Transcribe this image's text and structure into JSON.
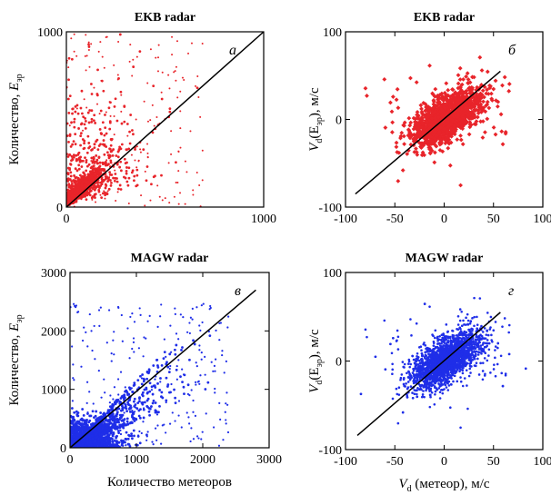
{
  "chart_data": [
    {
      "type": "scatter",
      "title": "EKB radar",
      "panel_label": "а",
      "xlabel": "",
      "ylabel": "Количество, E_эр",
      "ylabel_main": "Количество, ",
      "ylabel_var": "E",
      "ylabel_sub": "эр",
      "xlim": [
        0,
        1000
      ],
      "ylim": [
        0,
        1000
      ],
      "x_ticks": [
        "0",
        "1000"
      ],
      "y_ticks": [
        "0",
        "1000"
      ],
      "point_color": "#e8242a",
      "dense_center": [
        150,
        150
      ],
      "n_points": 1500,
      "fit_line": {
        "x": [
          0,
          1000
        ],
        "y": [
          0,
          1000
        ]
      }
    },
    {
      "type": "scatter",
      "title": "EKB radar",
      "panel_label": "б",
      "xlabel": "",
      "ylabel": "V_d(E_эр), м/с",
      "ylabel_main": "V",
      "ylabel_sub": "d",
      "ylabel_paren": "(E",
      "ylabel_paren_sub": "эр",
      "ylabel_tail": "), м/с",
      "xlim": [
        -100,
        100
      ],
      "ylim": [
        -100,
        100
      ],
      "x_ticks": [
        "-100",
        "-50",
        "0",
        "50",
        "100"
      ],
      "y_ticks": [
        "-100",
        "0",
        "100"
      ],
      "point_color": "#e8242a",
      "n_points": 1400,
      "fit_line": {
        "x": [
          -90,
          57
        ],
        "y": [
          -85,
          55
        ]
      }
    },
    {
      "type": "scatter",
      "title": "MAGW radar",
      "panel_label": "в",
      "xlabel": "Количество метеоров",
      "ylabel": "Количество, E_эр",
      "ylabel_main": "Количество, ",
      "ylabel_var": "E",
      "ylabel_sub": "эр",
      "xlim": [
        0,
        3000
      ],
      "ylim": [
        0,
        3000
      ],
      "x_ticks": [
        "0",
        "1000",
        "2000",
        "3000"
      ],
      "y_ticks": [
        "0",
        "1000",
        "2000",
        "3000"
      ],
      "point_color": "#1f2ee8",
      "n_points": 2200,
      "fit_line": {
        "x": [
          0,
          2800
        ],
        "y": [
          0,
          2700
        ]
      }
    },
    {
      "type": "scatter",
      "title": "MAGW radar",
      "panel_label": "г",
      "xlabel": "V_d (метеор), м/с",
      "xlabel_main": "V",
      "xlabel_sub": "d",
      "xlabel_tail": " (метеор), м/с",
      "ylabel": "V_d(E_эр), м/с",
      "ylabel_main": "V",
      "ylabel_sub": "d",
      "ylabel_paren": "(E",
      "ylabel_paren_sub": "эр",
      "ylabel_tail": "), м/с",
      "xlim": [
        -100,
        100
      ],
      "ylim": [
        -100,
        100
      ],
      "x_ticks": [
        "-100",
        "-50",
        "0",
        "50",
        "100"
      ],
      "y_ticks": [
        "-100",
        "0",
        "100"
      ],
      "point_color": "#1f2ee8",
      "n_points": 2200,
      "fit_line": {
        "x": [
          -88,
          57
        ],
        "y": [
          -84,
          55
        ]
      }
    }
  ]
}
